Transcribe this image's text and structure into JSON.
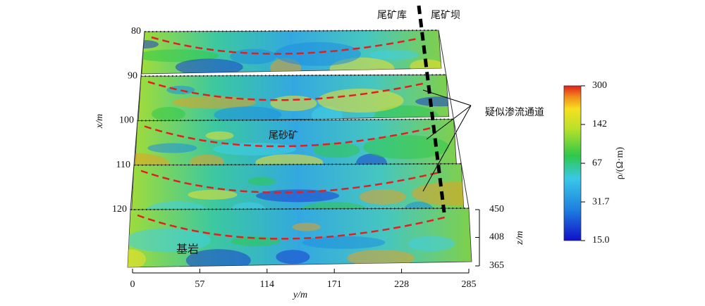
{
  "chart_data": {
    "type": "section-stack",
    "xlabel": "x/m",
    "xticks": [
      80,
      90,
      100,
      110,
      120
    ],
    "ylabel": "y/m",
    "ylim": [
      0,
      285
    ],
    "yticks": [
      0,
      57,
      114,
      171,
      228,
      285
    ],
    "zlabel": "z/m",
    "zlim": [
      365,
      450
    ],
    "zticks": [
      365,
      408,
      450
    ],
    "colorbar": {
      "label": "ρ/(Ω·m)",
      "scale": "log",
      "lim": [
        15,
        300
      ],
      "ticks": [
        {
          "value": 15,
          "label": "15.0"
        },
        31.7,
        67,
        142,
        300
      ]
    },
    "annotations": [
      "尾矿库",
      "尾矿坝",
      "疑似渗流通道",
      "尾砂矿",
      "基岩"
    ]
  }
}
